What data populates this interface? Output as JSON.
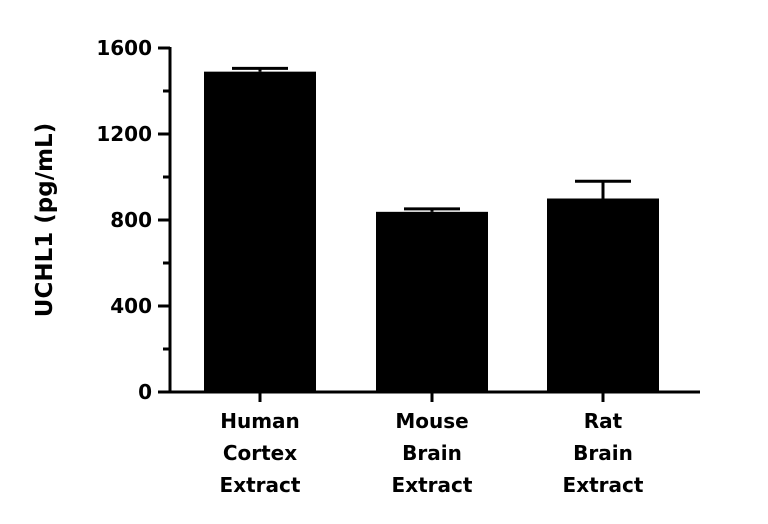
{
  "chart_data": {
    "type": "bar",
    "title": "",
    "xlabel": "",
    "ylabel": "UCHL1 (pg/mL)",
    "categories": [
      [
        "Human",
        "Cortex",
        "Extract"
      ],
      [
        "Mouse",
        "Brain",
        "Extract"
      ],
      [
        "Rat",
        "Brain",
        "Extract"
      ]
    ],
    "values": [
      1490,
      838,
      900
    ],
    "error_upper": [
      1505,
      852,
      980
    ],
    "ylim": [
      0,
      1600
    ],
    "major_ticks": [
      0,
      400,
      800,
      1200,
      1600
    ],
    "minor_tick_step": 200,
    "grid": false,
    "bar_color": "#000000"
  }
}
